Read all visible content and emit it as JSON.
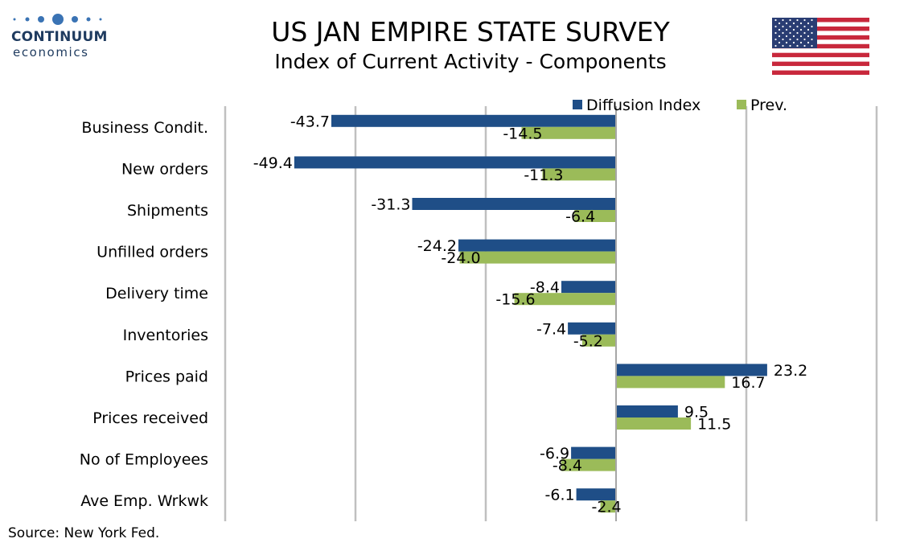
{
  "header": {
    "title": "US JAN EMPIRE STATE SURVEY",
    "subtitle": "Index of Current Activity - Components"
  },
  "logo": {
    "word": "CONTINUUM",
    "sub": "economics",
    "dot_color": "#3a73b4",
    "text_color": "#1f3b5f"
  },
  "flag": {
    "icon": "us-flag-icon"
  },
  "footer": {
    "source": "Source: New York Fed."
  },
  "chart_data": {
    "type": "bar",
    "orientation": "horizontal",
    "categories": [
      "Business Condit.",
      "New orders",
      "Shipments",
      "Unfilled orders",
      "Delivery time",
      "Inventories",
      "Prices paid",
      "Prices received",
      "No of Employees",
      "Ave Emp. Wrkwk"
    ],
    "series": [
      {
        "name": "Diffusion Index",
        "color": "#1f4e87",
        "values": [
          -43.7,
          -49.4,
          -31.3,
          -24.2,
          -8.4,
          -7.4,
          23.2,
          9.5,
          -6.9,
          -6.1
        ]
      },
      {
        "name": "Prev.",
        "color": "#9bbb59",
        "values": [
          -14.5,
          -11.3,
          -6.4,
          -24.0,
          -15.6,
          -5.2,
          16.7,
          11.5,
          -8.4,
          -2.4
        ]
      }
    ],
    "xlim": [
      -60,
      40
    ],
    "grid": true,
    "legend": "top-right"
  }
}
